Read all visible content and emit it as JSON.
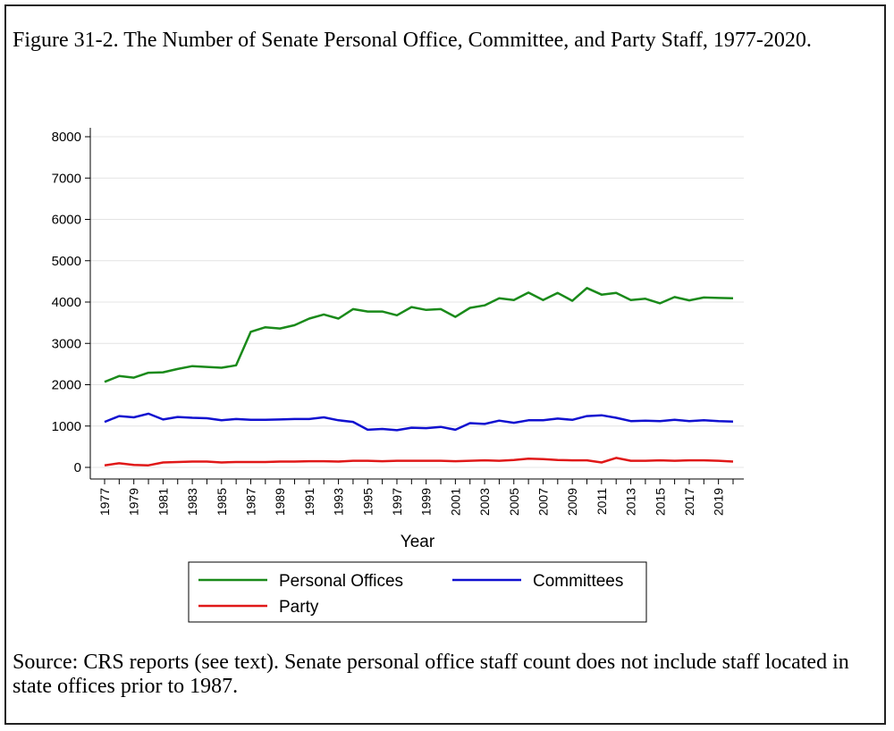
{
  "figure": {
    "title": "Figure 31-2. The Number of Senate Personal Office, Committee, and Party Staff, 1977-2020.",
    "source": "Source: CRS reports (see text). Senate personal office staff count does not include staff located in state offices prior to 1987."
  },
  "chart_data": {
    "type": "line",
    "title": "Figure 31-2. The Number of Senate Personal Office, Committee, and Party Staff, 1977-2020.",
    "xlabel": "Year",
    "ylabel": "",
    "xlim": [
      1977,
      2020
    ],
    "ylim": [
      0,
      8000
    ],
    "xticks": [
      "1977",
      "1979",
      "1981",
      "1983",
      "1985",
      "1987",
      "1989",
      "1991",
      "1993",
      "1995",
      "1997",
      "1999",
      "2001",
      "2003",
      "2005",
      "2007",
      "2009",
      "2011",
      "2013",
      "2015",
      "2017",
      "2019"
    ],
    "yticks": [
      "0",
      "1000",
      "2000",
      "3000",
      "4000",
      "5000",
      "6000",
      "7000",
      "8000"
    ],
    "grid": true,
    "legend_position": "bottom",
    "x": [
      1977,
      1978,
      1979,
      1980,
      1981,
      1982,
      1983,
      1984,
      1985,
      1986,
      1987,
      1988,
      1989,
      1990,
      1991,
      1992,
      1993,
      1994,
      1995,
      1996,
      1997,
      1998,
      1999,
      2000,
      2001,
      2002,
      2003,
      2004,
      2005,
      2006,
      2007,
      2008,
      2009,
      2010,
      2011,
      2012,
      2013,
      2014,
      2015,
      2016,
      2017,
      2018,
      2019,
      2020
    ],
    "series": [
      {
        "name": "Personal Offices",
        "color": "#1a8a1a",
        "values": [
          2070,
          2210,
          2170,
          2290,
          2300,
          2380,
          2450,
          2430,
          2410,
          2470,
          3280,
          3390,
          3360,
          3440,
          3600,
          3700,
          3600,
          3830,
          3770,
          3770,
          3680,
          3880,
          3810,
          3830,
          3640,
          3860,
          3920,
          4090,
          4050,
          4230,
          4050,
          4220,
          4030,
          4340,
          4180,
          4220,
          4050,
          4080,
          3970,
          4120,
          4040,
          4110,
          4100,
          4090
        ]
      },
      {
        "name": "Committees",
        "color": "#1010d0",
        "values": [
          1100,
          1240,
          1210,
          1300,
          1160,
          1220,
          1200,
          1190,
          1140,
          1170,
          1150,
          1150,
          1160,
          1170,
          1170,
          1210,
          1140,
          1100,
          910,
          930,
          900,
          960,
          950,
          980,
          910,
          1070,
          1050,
          1130,
          1080,
          1140,
          1140,
          1180,
          1150,
          1240,
          1260,
          1200,
          1120,
          1130,
          1120,
          1150,
          1120,
          1140,
          1120,
          1110
        ]
      },
      {
        "name": "Party",
        "color": "#e01818",
        "values": [
          50,
          100,
          60,
          50,
          120,
          130,
          140,
          140,
          120,
          130,
          130,
          130,
          140,
          140,
          150,
          150,
          140,
          160,
          160,
          150,
          160,
          160,
          160,
          160,
          150,
          160,
          170,
          160,
          180,
          210,
          200,
          180,
          170,
          170,
          120,
          230,
          160,
          160,
          170,
          160,
          170,
          170,
          160,
          140
        ]
      }
    ]
  }
}
